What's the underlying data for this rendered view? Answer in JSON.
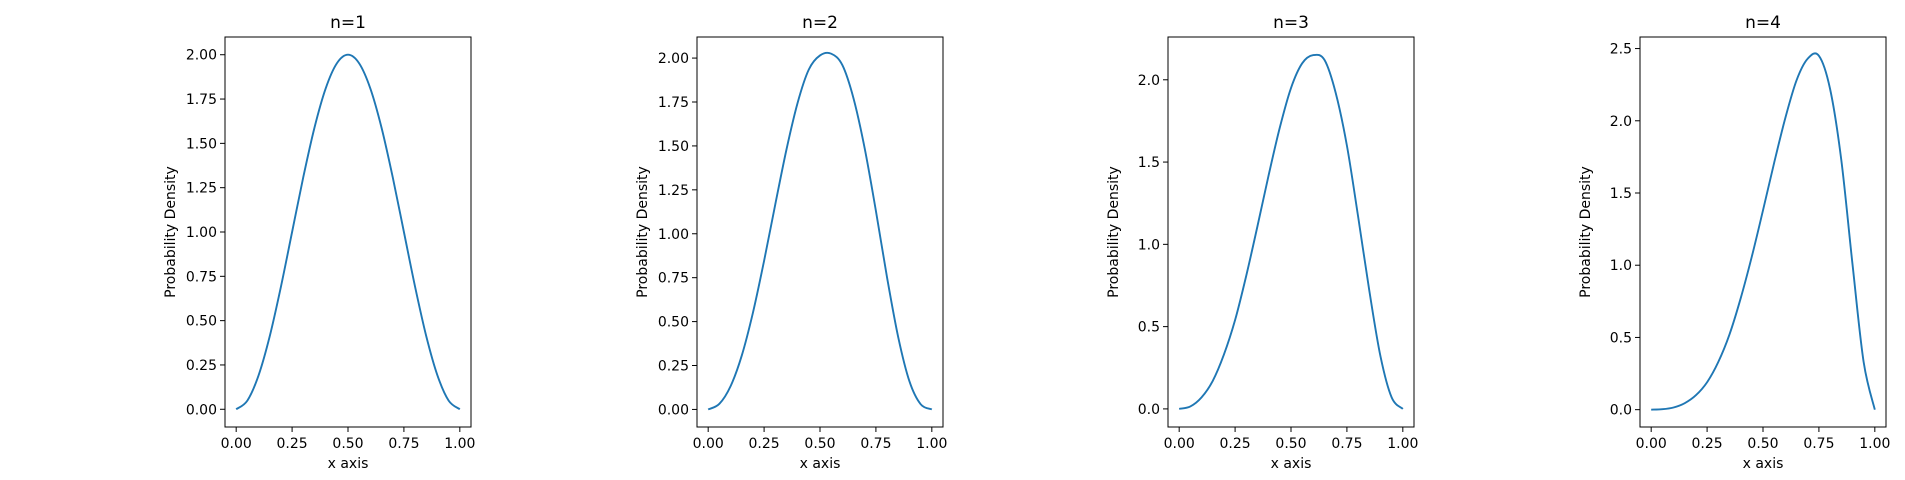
{
  "figure": {
    "background": "#ffffff",
    "line_color": "#1f77b4"
  },
  "chart_data": [
    {
      "type": "line",
      "title": "n=1",
      "xlabel": "x axis",
      "ylabel": "Probability Density",
      "xlim": [
        -0.05,
        1.05
      ],
      "ylim": [
        -0.1,
        2.1
      ],
      "x_ticks": [
        0.0,
        0.25,
        0.5,
        0.75,
        1.0
      ],
      "x_tick_labels": [
        "0.00",
        "0.25",
        "0.50",
        "0.75",
        "1.00"
      ],
      "y_ticks": [
        0.0,
        0.25,
        0.5,
        0.75,
        1.0,
        1.25,
        1.5,
        1.75,
        2.0
      ],
      "y_tick_labels": [
        "0.00",
        "0.25",
        "0.50",
        "0.75",
        "1.00",
        "1.25",
        "1.50",
        "1.75",
        "2.00"
      ],
      "grid": false,
      "x": [
        0.0,
        0.05,
        0.1,
        0.15,
        0.2,
        0.25,
        0.3,
        0.35,
        0.4,
        0.45,
        0.5,
        0.55,
        0.6,
        0.65,
        0.7,
        0.75,
        0.8,
        0.85,
        0.9,
        0.95,
        1.0
      ],
      "y": [
        0.0,
        0.049,
        0.191,
        0.412,
        0.691,
        1.0,
        1.309,
        1.588,
        1.809,
        1.951,
        2.0,
        1.951,
        1.809,
        1.588,
        1.309,
        1.0,
        0.691,
        0.412,
        0.191,
        0.049,
        0.0
      ]
    },
    {
      "type": "line",
      "title": "n=2",
      "xlabel": "x axis",
      "ylabel": "Probability Density",
      "xlim": [
        -0.05,
        1.05
      ],
      "ylim": [
        -0.1,
        2.12
      ],
      "x_ticks": [
        0.0,
        0.25,
        0.5,
        0.75,
        1.0
      ],
      "x_tick_labels": [
        "0.00",
        "0.25",
        "0.50",
        "0.75",
        "1.00"
      ],
      "y_ticks": [
        0.0,
        0.25,
        0.5,
        0.75,
        1.0,
        1.25,
        1.5,
        1.75,
        2.0
      ],
      "y_tick_labels": [
        "0.00",
        "0.25",
        "0.50",
        "0.75",
        "1.00",
        "1.25",
        "1.50",
        "1.75",
        "2.00"
      ],
      "grid": false,
      "x": [
        0.0,
        0.05,
        0.1,
        0.15,
        0.2,
        0.25,
        0.3,
        0.35,
        0.4,
        0.45,
        0.5,
        0.55,
        0.6,
        0.65,
        0.7,
        0.75,
        0.8,
        0.85,
        0.9,
        0.95,
        1.0
      ],
      "y": [
        0.0,
        0.032,
        0.132,
        0.306,
        0.55,
        0.846,
        1.167,
        1.479,
        1.746,
        1.935,
        2.015,
        2.025,
        1.96,
        1.77,
        1.485,
        1.13,
        0.75,
        0.41,
        0.16,
        0.03,
        0.0
      ]
    },
    {
      "type": "line",
      "title": "n=3",
      "xlabel": "x axis",
      "ylabel": "Probability Density",
      "xlim": [
        -0.05,
        1.05
      ],
      "ylim": [
        -0.11,
        2.26
      ],
      "x_ticks": [
        0.0,
        0.25,
        0.5,
        0.75,
        1.0
      ],
      "x_tick_labels": [
        "0.00",
        "0.25",
        "0.50",
        "0.75",
        "1.00"
      ],
      "y_ticks": [
        0.0,
        0.5,
        1.0,
        1.5,
        2.0
      ],
      "y_tick_labels": [
        "0.0",
        "0.5",
        "1.0",
        "1.5",
        "2.0"
      ],
      "grid": false,
      "x": [
        0.0,
        0.05,
        0.1,
        0.15,
        0.2,
        0.25,
        0.3,
        0.35,
        0.4,
        0.45,
        0.5,
        0.55,
        0.6,
        0.65,
        0.7,
        0.75,
        0.8,
        0.85,
        0.9,
        0.95,
        1.0
      ],
      "y": [
        0.0,
        0.015,
        0.07,
        0.17,
        0.33,
        0.54,
        0.81,
        1.11,
        1.42,
        1.71,
        1.95,
        2.1,
        2.15,
        2.12,
        1.92,
        1.6,
        1.17,
        0.72,
        0.32,
        0.07,
        0.0
      ]
    },
    {
      "type": "line",
      "title": "n=4",
      "xlabel": "x axis",
      "ylabel": "Probability Density",
      "xlim": [
        -0.05,
        1.05
      ],
      "ylim": [
        -0.12,
        2.58
      ],
      "x_ticks": [
        0.0,
        0.25,
        0.5,
        0.75,
        1.0
      ],
      "x_tick_labels": [
        "0.00",
        "0.25",
        "0.50",
        "0.75",
        "1.00"
      ],
      "y_ticks": [
        0.0,
        0.5,
        1.0,
        1.5,
        2.0,
        2.5
      ],
      "y_tick_labels": [
        "0.0",
        "0.5",
        "1.0",
        "1.5",
        "2.0",
        "2.5"
      ],
      "grid": false,
      "x": [
        0.0,
        0.05,
        0.1,
        0.15,
        0.2,
        0.25,
        0.3,
        0.35,
        0.4,
        0.45,
        0.5,
        0.55,
        0.6,
        0.65,
        0.7,
        0.75,
        0.8,
        0.85,
        0.9,
        0.95,
        1.0
      ],
      "y": [
        0.0,
        0.003,
        0.015,
        0.045,
        0.1,
        0.19,
        0.33,
        0.52,
        0.77,
        1.06,
        1.38,
        1.71,
        2.02,
        2.28,
        2.43,
        2.45,
        2.22,
        1.73,
        1.01,
        0.33,
        0.0
      ]
    }
  ]
}
